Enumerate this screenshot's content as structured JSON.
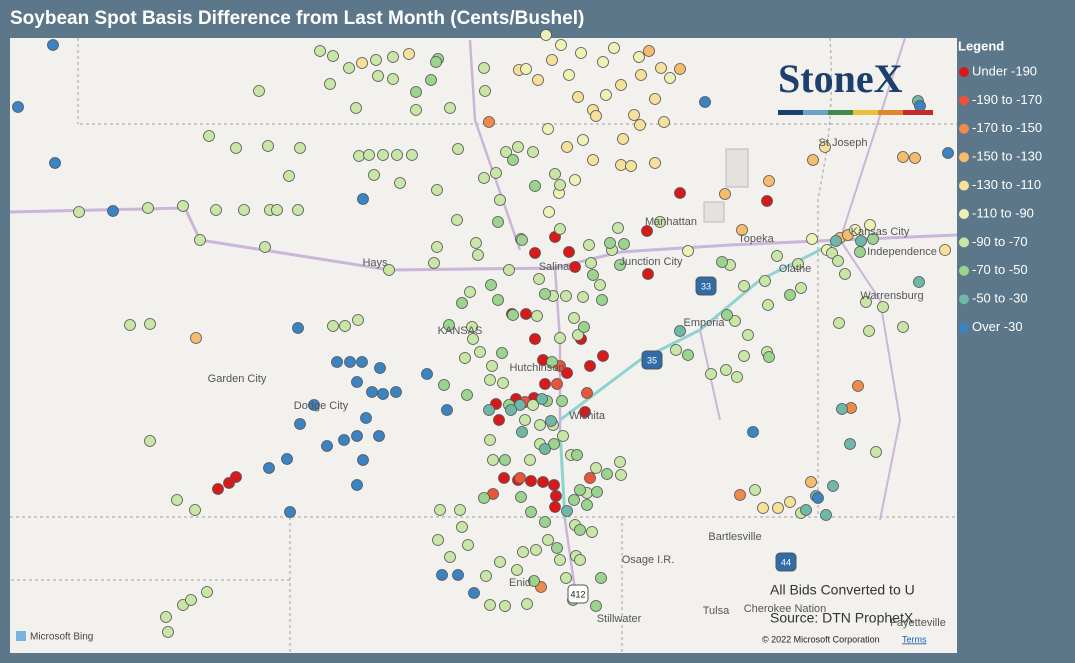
{
  "title": "Soybean Spot Basis Difference from Last Month (Cents/Bushel)",
  "logo": "StoneX",
  "legend": {
    "title": "Legend",
    "items": [
      {
        "label": "Under -190",
        "color": "#d7191c"
      },
      {
        "label": "-190 to -170",
        "color": "#e8553a"
      },
      {
        "label": "-170 to -150",
        "color": "#f08a4b"
      },
      {
        "label": "-150 to -130",
        "color": "#f7bb6e"
      },
      {
        "label": "-130 to -110",
        "color": "#f6e09a"
      },
      {
        "label": "-110 to -90",
        "color": "#eef3b5"
      },
      {
        "label": "-90 to -70",
        "color": "#c8e6a6"
      },
      {
        "label": "-70 to -50",
        "color": "#9ad48e"
      },
      {
        "label": "-50 to -30",
        "color": "#6fb8a8"
      },
      {
        "label": "Over -30",
        "color": "#3a84c4"
      }
    ]
  },
  "map_labels": [
    "St Joseph",
    "Manhattan",
    "Kansas City",
    "Independence",
    "Topeka",
    "Olathe",
    "Hays",
    "Salina",
    "Junction City",
    "Warrensburg",
    "Emporia",
    "KANSAS",
    "Garden City",
    "Hutchinson",
    "Dodge City",
    "Wichita",
    "Bartlesville",
    "Osage I.R.",
    "Enid",
    "Tulsa",
    "Stillwater",
    "Cherokee Nation",
    "Fayetteville"
  ],
  "highway_shields": [
    "35",
    "33",
    "44",
    "412"
  ],
  "notes": {
    "conversion": "All Bids Converted to U",
    "source": "Source: DTN ProphetX",
    "copyright": "© 2022 Microsoft Corporation",
    "terms": "Terms",
    "bing": "Microsoft Bing"
  }
}
